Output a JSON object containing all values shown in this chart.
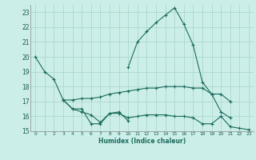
{
  "bg_color": "#cceee8",
  "grid_color": "#aad8d0",
  "line_color": "#1a6b5e",
  "xlabel": "Humidex (Indice chaleur)",
  "xlim": [
    -0.5,
    23.5
  ],
  "ylim": [
    15,
    23.5
  ],
  "yticks": [
    15,
    16,
    17,
    18,
    19,
    20,
    21,
    22,
    23
  ],
  "xticks": [
    0,
    1,
    2,
    3,
    4,
    5,
    6,
    7,
    8,
    9,
    10,
    11,
    12,
    13,
    14,
    15,
    16,
    17,
    18,
    19,
    20,
    21,
    22,
    23
  ],
  "series": [
    {
      "x": [
        0,
        1,
        2,
        3,
        4,
        5,
        6,
        7,
        8,
        9,
        10,
        11,
        12,
        13,
        14,
        15,
        16,
        17,
        18,
        19,
        20,
        21,
        22,
        23
      ],
      "y": [
        20.0,
        19.0,
        18.5,
        17.1,
        16.5,
        16.5,
        15.5,
        15.5,
        16.2,
        16.2,
        15.9,
        16.0,
        16.1,
        16.1,
        16.1,
        16.0,
        16.0,
        15.9,
        15.5,
        15.5,
        16.0,
        15.3,
        15.2,
        15.1
      ]
    },
    {
      "x": [
        3,
        4,
        5,
        6,
        7,
        8,
        9,
        10,
        11,
        12,
        13,
        14,
        15,
        16,
        17,
        18,
        19,
        20,
        21
      ],
      "y": [
        17.1,
        17.1,
        17.2,
        17.2,
        17.3,
        17.5,
        17.6,
        17.7,
        17.8,
        17.9,
        17.9,
        18.0,
        18.0,
        18.0,
        17.9,
        17.9,
        17.5,
        17.5,
        17.0
      ]
    },
    {
      "x": [
        3,
        4,
        5,
        6,
        7,
        8,
        9,
        10
      ],
      "y": [
        17.1,
        16.5,
        16.3,
        16.1,
        15.6,
        16.2,
        16.3,
        15.7
      ]
    },
    {
      "x": [
        10,
        11,
        12,
        13,
        14,
        15,
        16,
        17,
        18,
        19,
        20,
        21
      ],
      "y": [
        19.3,
        21.0,
        21.7,
        22.3,
        22.8,
        23.3,
        22.2,
        20.8,
        18.3,
        17.5,
        16.3,
        15.9
      ]
    }
  ]
}
